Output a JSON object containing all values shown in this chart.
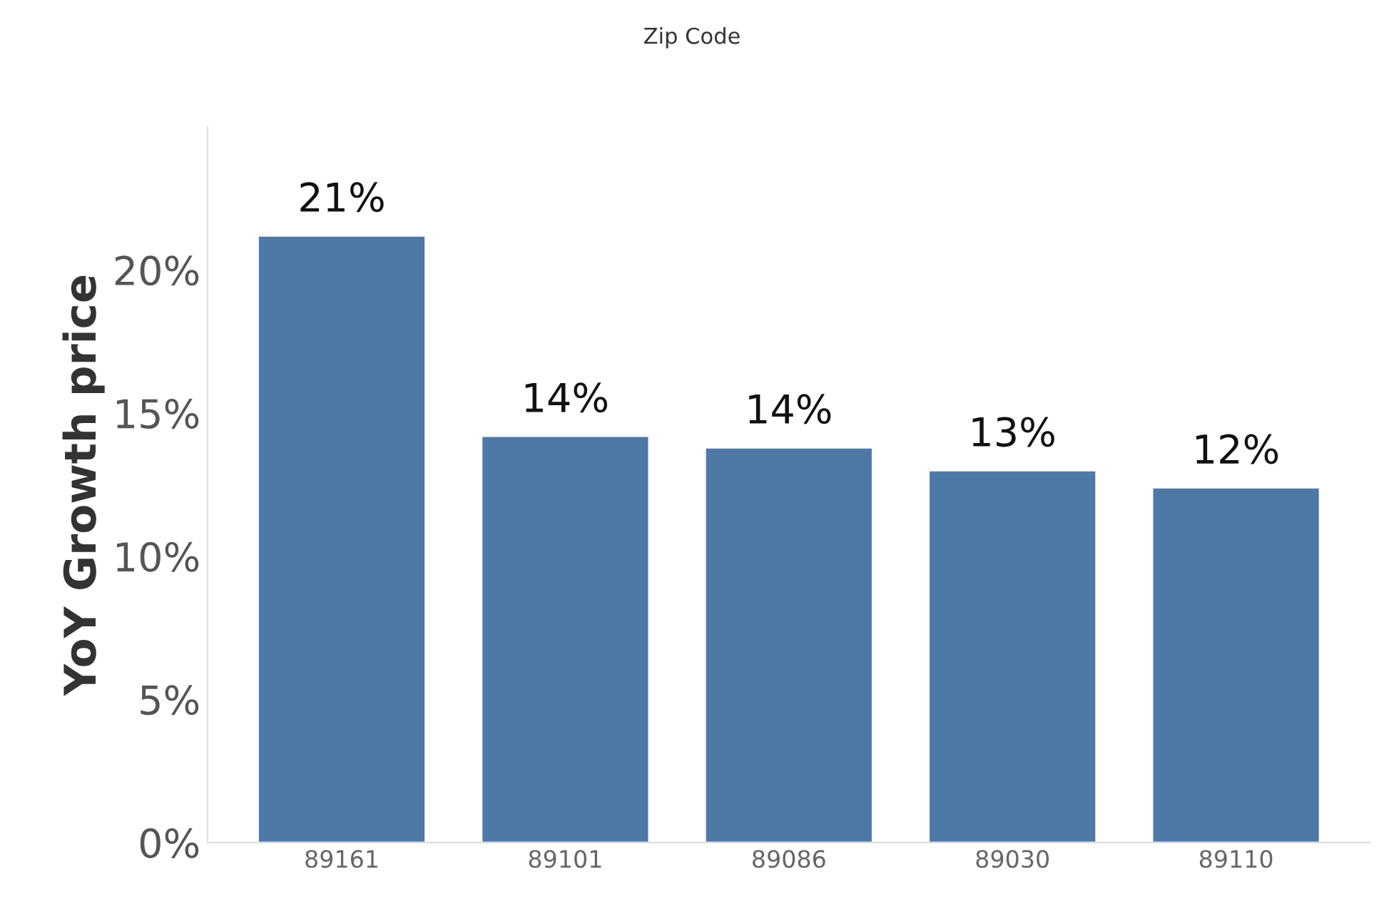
{
  "chart_data": {
    "type": "bar",
    "title": "Zip Code",
    "ylabel": "YoY Growth price",
    "categories": [
      "89161",
      "89101",
      "89086",
      "89030",
      "89110"
    ],
    "values": [
      21.2,
      14.2,
      13.8,
      13.0,
      12.4
    ],
    "value_labels": [
      "21%",
      "14%",
      "14%",
      "13%",
      "12%"
    ],
    "color": "#4e79a7",
    "ylim": [
      0,
      25
    ],
    "yticks": [
      {
        "value": 0,
        "label": "0%"
      },
      {
        "value": 5,
        "label": "5%"
      },
      {
        "value": 10,
        "label": "10%"
      },
      {
        "value": 15,
        "label": "15%"
      },
      {
        "value": 20,
        "label": "20%"
      }
    ],
    "grid": false
  }
}
